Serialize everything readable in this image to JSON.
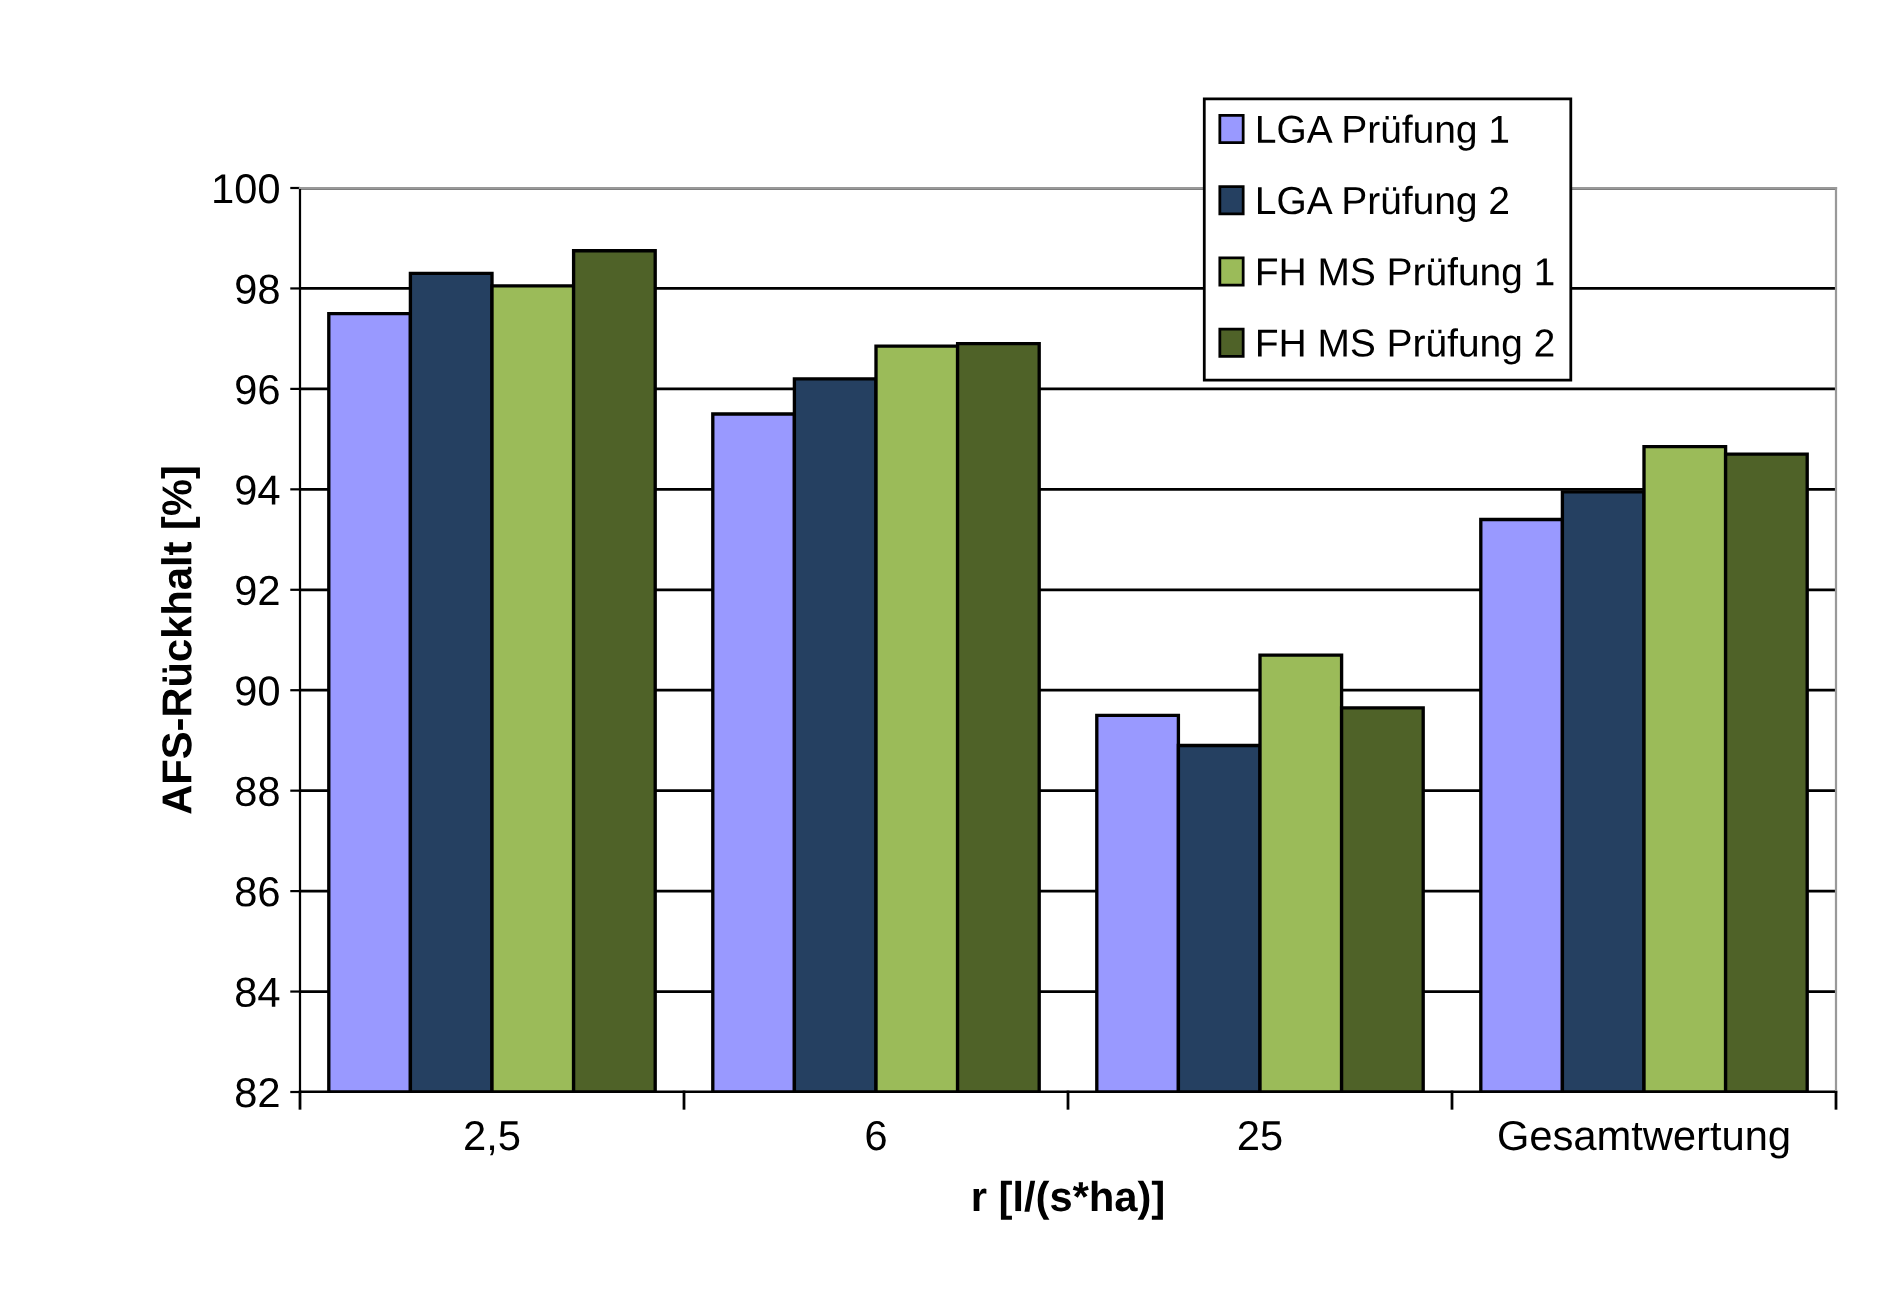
{
  "chart_data": {
    "type": "bar",
    "xlabel": "r [l/(s*ha)]",
    "ylabel": "AFS-Rückhalt [%]",
    "categories": [
      "2,5",
      "6",
      "25",
      "Gesamtwertung"
    ],
    "series": [
      {
        "name": "LGA Prüfung 1",
        "color": "#9999ff",
        "values": [
          97.5,
          95.5,
          89.5,
          93.4
        ]
      },
      {
        "name": "LGA Prüfung 2",
        "color": "#254061",
        "values": [
          98.3,
          96.2,
          88.9,
          93.95
        ]
      },
      {
        "name": "FH MS Prüfung 1",
        "color": "#9bbb59",
        "values": [
          98.05,
          96.85,
          90.7,
          94.85
        ]
      },
      {
        "name": "FH MS Prüfung 2",
        "color": "#4f6228",
        "values": [
          98.75,
          96.9,
          89.65,
          94.7
        ]
      }
    ],
    "ylim": [
      82,
      100
    ],
    "yticks": [
      82,
      84,
      86,
      88,
      90,
      92,
      94,
      96,
      98,
      100
    ],
    "grid": "y",
    "legend": "top right"
  }
}
